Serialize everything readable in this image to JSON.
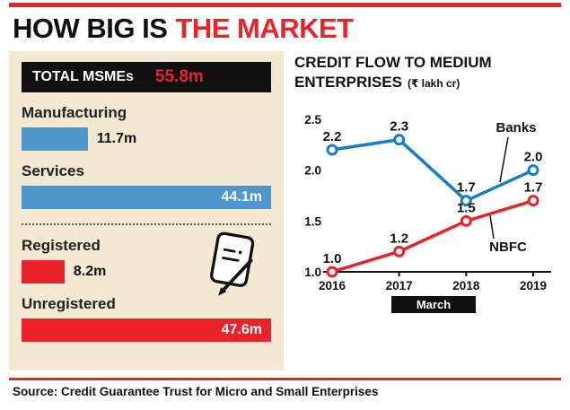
{
  "header": {
    "title_black": "HOW BIG IS",
    "title_red": "THE MARKET"
  },
  "colors": {
    "red": "#e8232a",
    "blue": "#4e97cb",
    "black": "#111111",
    "beige": "#f3e8d2"
  },
  "left_panel": {
    "total_label": "TOTAL MSMEs",
    "total_value": "55.8m",
    "type_bars": [
      {
        "label": "Manufacturing",
        "value": 11.7,
        "display": "11.7m",
        "color": "blue",
        "value_inside": false
      },
      {
        "label": "Services",
        "value": 44.1,
        "display": "44.1m",
        "color": "blue",
        "value_inside": true
      }
    ],
    "registration_bars": [
      {
        "label": "Registered",
        "value": 8.2,
        "display": "8.2m",
        "color": "red",
        "value_inside": false
      },
      {
        "label": "Unregistered",
        "value": 47.6,
        "display": "47.6m",
        "color": "red",
        "value_inside": true
      }
    ]
  },
  "chart_data": [
    {
      "type": "bar",
      "title": "TOTAL MSMEs",
      "total": "55.8m",
      "categories": [
        "Manufacturing",
        "Services",
        "Registered",
        "Unregistered"
      ],
      "values": [
        11.7,
        44.1,
        8.2,
        47.6
      ],
      "unit": "m"
    },
    {
      "type": "line",
      "title": "CREDIT FLOW TO MEDIUM ENTERPRISES",
      "unit": "(₹ lakh cr)",
      "x": [
        "2016",
        "2017",
        "2018",
        "2019"
      ],
      "xlabel": "March",
      "ylim": [
        1.0,
        2.5
      ],
      "yticks": [
        1.0,
        1.5,
        2.0,
        2.5
      ],
      "grid": false,
      "legend_position": "inline-annotations",
      "series": [
        {
          "name": "Banks",
          "color": "#1a7dc4",
          "values": [
            2.2,
            2.3,
            1.7,
            2.0
          ]
        },
        {
          "name": "NBFC",
          "color": "#e8232a",
          "values": [
            1.0,
            1.2,
            1.5,
            1.7
          ]
        }
      ]
    }
  ],
  "footer": {
    "source": "Source: Credit Guarantee Trust for Micro and Small Enterprises"
  }
}
